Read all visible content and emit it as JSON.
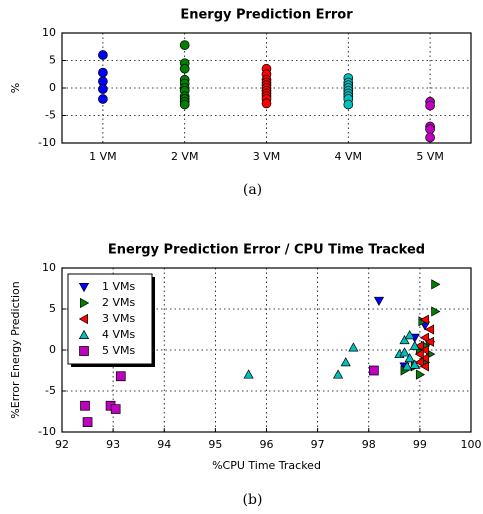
{
  "chart_data": [
    {
      "type": "strip",
      "title": "Energy Prediction Error",
      "ylabel": "%",
      "caption": "(a)",
      "categories": [
        "1 VM",
        "2 VM",
        "3 VM",
        "4 VM",
        "5 VM"
      ],
      "colors": [
        "#0000ff",
        "#007f00",
        "#ff0000",
        "#00bfbf",
        "#bf00bf"
      ],
      "values": [
        [
          6,
          2.8,
          1.2,
          -0.2,
          -2
        ],
        [
          7.8,
          4.5,
          3.5,
          1.5,
          0.8,
          0,
          -0.5,
          -1.5,
          -2,
          -2.5,
          -3
        ],
        [
          3.5,
          2.5,
          1.5,
          1,
          0.5,
          0,
          -0.5,
          -1,
          -1.5,
          -2,
          -2.8
        ],
        [
          1.8,
          1,
          0.5,
          0,
          -0.5,
          -1,
          -1.5,
          -2,
          -3
        ],
        [
          -2.5,
          -3.2,
          -7,
          -7.5,
          -9
        ]
      ],
      "ylim": [
        -10,
        10
      ],
      "yticks": [
        -10,
        -5,
        0,
        5,
        10
      ],
      "grid": true
    },
    {
      "type": "scatter",
      "title": "Energy Prediction Error / CPU Time Tracked",
      "xlabel": "%CPU Time Tracked",
      "ylabel": "%Error Energy Prediction",
      "caption": "(b)",
      "legend": "upper left",
      "series": [
        {
          "name": "1 VMs",
          "color": "#0000ff",
          "marker": "triangle-down",
          "x": [
            98.2,
            99.1,
            98.9,
            99.0,
            98.7
          ],
          "values": [
            6,
            3,
            1.5,
            0,
            -2
          ]
        },
        {
          "name": "2 VMs",
          "color": "#007f00",
          "marker": "triangle-right",
          "x": [
            99.3,
            99.3,
            99.05,
            99.2,
            99.1,
            99.0,
            99.2,
            99.1,
            98.9,
            98.7,
            99.0
          ],
          "values": [
            8,
            4.7,
            3.5,
            1,
            0.5,
            0,
            -0.5,
            -1.5,
            -2,
            -2.5,
            -3
          ]
        },
        {
          "name": "3 VMs",
          "color": "#ff0000",
          "marker": "triangle-left",
          "x": [
            99.1,
            99.2,
            99.1,
            99.2,
            99.0,
            99.1,
            99.0,
            99.1,
            99.0,
            99.1
          ],
          "values": [
            3.7,
            2.5,
            1.5,
            1,
            0.5,
            0,
            -0.5,
            -1,
            -1.5,
            -2
          ]
        },
        {
          "name": "4 VMs",
          "color": "#00bfbf",
          "marker": "triangle-up",
          "x": [
            95.65,
            97.4,
            97.55,
            97.7,
            98.7,
            98.8,
            98.6,
            98.7,
            98.8,
            98.9,
            98.75,
            98.9
          ],
          "values": [
            -3,
            -3,
            -1.5,
            0.3,
            1.2,
            1.8,
            -0.5,
            -0.3,
            -1,
            -1.8,
            -2,
            0.5
          ]
        },
        {
          "name": "5 VMs",
          "color": "#bf00bf",
          "marker": "square",
          "x": [
            93.15,
            92.45,
            92.95,
            93.05,
            92.5,
            98.1
          ],
          "values": [
            -3.2,
            -6.8,
            -6.8,
            -7.2,
            -8.8,
            -2.5
          ]
        }
      ],
      "xlim": [
        92,
        100
      ],
      "xticks": [
        92,
        93,
        94,
        95,
        96,
        97,
        98,
        99,
        100
      ],
      "ylim": [
        -10,
        10
      ],
      "yticks": [
        -10,
        -5,
        0,
        5,
        10
      ],
      "grid": true
    }
  ]
}
